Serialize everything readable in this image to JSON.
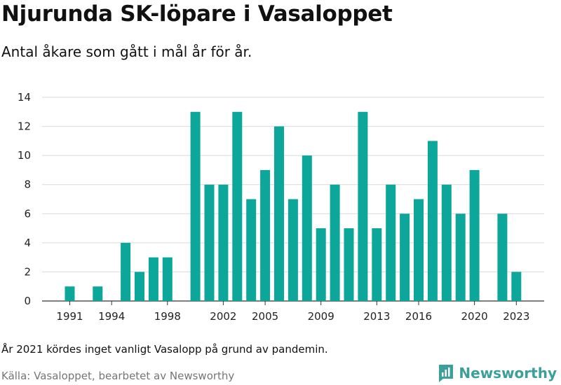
{
  "title": "Njurunda SK-löpare i Vasaloppet",
  "subtitle": "Antal åkare som gått i mål år för år.",
  "note": "År 2021 kördes inget vanligt Vasalopp på grund av pandemin.",
  "source": "Källa: Vasaloppet, bearbetet av Newsworthy",
  "brand": {
    "name": "Newsworthy",
    "icon": "newsworthy-logo-icon",
    "color": "#3b9f9a"
  },
  "chart_data": {
    "type": "bar",
    "color": "#0ca79a",
    "x": [
      1991,
      1992,
      1993,
      1994,
      1995,
      1996,
      1997,
      1998,
      1999,
      2000,
      2001,
      2002,
      2003,
      2004,
      2005,
      2006,
      2007,
      2008,
      2009,
      2010,
      2011,
      2012,
      2013,
      2014,
      2015,
      2016,
      2017,
      2018,
      2019,
      2020,
      2021,
      2022,
      2023
    ],
    "values": [
      1,
      0,
      1,
      0,
      4,
      2,
      3,
      3,
      0,
      13,
      8,
      8,
      13,
      7,
      9,
      12,
      7,
      10,
      5,
      8,
      5,
      13,
      5,
      8,
      6,
      7,
      11,
      8,
      6,
      9,
      0,
      6,
      2
    ],
    "xticks": [
      "1991",
      "1994",
      "1998",
      "2002",
      "2005",
      "2009",
      "2013",
      "2016",
      "2020",
      "2023"
    ],
    "yticks": [
      "0",
      "2",
      "4",
      "6",
      "8",
      "10",
      "12",
      "14"
    ],
    "ylim": [
      0,
      14
    ],
    "grid": true
  }
}
